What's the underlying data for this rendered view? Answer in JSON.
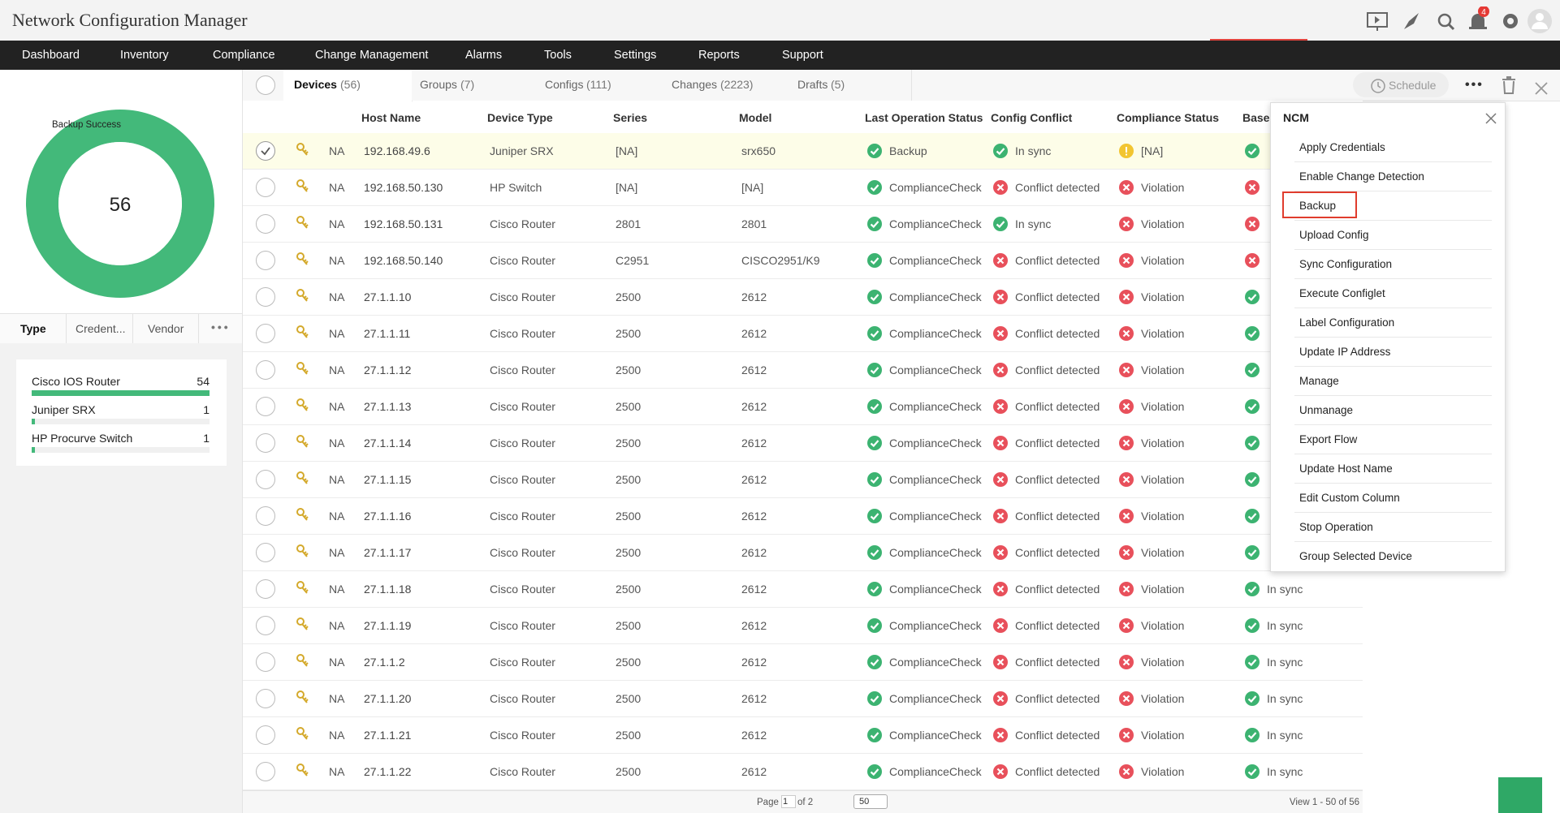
{
  "header": {
    "title": "Network Configuration Manager",
    "notification_count": "4"
  },
  "nav": [
    "Dashboard",
    "Inventory",
    "Compliance",
    "Change Management",
    "Alarms",
    "Tools",
    "Settings",
    "Reports",
    "Support"
  ],
  "summary": {
    "label": "Backup Success",
    "total": 56
  },
  "filter_tabs": [
    "Type",
    "Credent...",
    "Vendor"
  ],
  "device_types": [
    {
      "name": "Cisco IOS Router",
      "count": 54
    },
    {
      "name": "Juniper SRX",
      "count": 1
    },
    {
      "name": "HP Procurve Switch",
      "count": 1
    }
  ],
  "tabs": [
    {
      "label": "Devices",
      "count": "(56)"
    },
    {
      "label": "Groups",
      "count": "(7)"
    },
    {
      "label": "Configs",
      "count": "(111)"
    },
    {
      "label": "Changes",
      "count": "(2223)"
    },
    {
      "label": "Drafts",
      "count": "(5)"
    }
  ],
  "toolbar": {
    "schedule": "Schedule"
  },
  "columns": [
    "Host Name",
    "Device Type",
    "Series",
    "Model",
    "Last Operation Status",
    "Config Conflict",
    "Compliance Status",
    "Basel"
  ],
  "rows": [
    {
      "type": "NA",
      "host": "192.168.49.6",
      "device_type": "Juniper SRX",
      "series": "[NA]",
      "model": "srx650",
      "last_op": "Backup",
      "conflict": "In sync",
      "compliance": "[NA]"
    },
    {
      "type": "NA",
      "host": "192.168.50.130",
      "device_type": "HP Switch",
      "series": "[NA]",
      "model": "[NA]",
      "last_op": "ComplianceCheck",
      "conflict": "Conflict detected",
      "compliance": "Violation"
    },
    {
      "type": "NA",
      "host": "192.168.50.131",
      "device_type": "Cisco Router",
      "series": "2801",
      "model": "2801",
      "last_op": "ComplianceCheck",
      "conflict": "In sync",
      "compliance": "Violation"
    },
    {
      "type": "NA",
      "host": "192.168.50.140",
      "device_type": "Cisco Router",
      "series": "C2951",
      "model": "CISCO2951/K9",
      "last_op": "ComplianceCheck",
      "conflict": "Conflict detected",
      "compliance": "Violation"
    },
    {
      "type": "NA",
      "host": "27.1.1.10",
      "device_type": "Cisco Router",
      "series": "2500",
      "model": "2612",
      "last_op": "ComplianceCheck",
      "conflict": "Conflict detected",
      "compliance": "Violation"
    },
    {
      "type": "NA",
      "host": "27.1.1.11",
      "device_type": "Cisco Router",
      "series": "2500",
      "model": "2612",
      "last_op": "ComplianceCheck",
      "conflict": "Conflict detected",
      "compliance": "Violation"
    },
    {
      "type": "NA",
      "host": "27.1.1.12",
      "device_type": "Cisco Router",
      "series": "2500",
      "model": "2612",
      "last_op": "ComplianceCheck",
      "conflict": "Conflict detected",
      "compliance": "Violation"
    },
    {
      "type": "NA",
      "host": "27.1.1.13",
      "device_type": "Cisco Router",
      "series": "2500",
      "model": "2612",
      "last_op": "ComplianceCheck",
      "conflict": "Conflict detected",
      "compliance": "Violation"
    },
    {
      "type": "NA",
      "host": "27.1.1.14",
      "device_type": "Cisco Router",
      "series": "2500",
      "model": "2612",
      "last_op": "ComplianceCheck",
      "conflict": "Conflict detected",
      "compliance": "Violation"
    },
    {
      "type": "NA",
      "host": "27.1.1.15",
      "device_type": "Cisco Router",
      "series": "2500",
      "model": "2612",
      "last_op": "ComplianceCheck",
      "conflict": "Conflict detected",
      "compliance": "Violation"
    },
    {
      "type": "NA",
      "host": "27.1.1.16",
      "device_type": "Cisco Router",
      "series": "2500",
      "model": "2612",
      "last_op": "ComplianceCheck",
      "conflict": "Conflict detected",
      "compliance": "Violation"
    },
    {
      "type": "NA",
      "host": "27.1.1.17",
      "device_type": "Cisco Router",
      "series": "2500",
      "model": "2612",
      "last_op": "ComplianceCheck",
      "conflict": "Conflict detected",
      "compliance": "Violation"
    },
    {
      "type": "NA",
      "host": "27.1.1.18",
      "device_type": "Cisco Router",
      "series": "2500",
      "model": "2612",
      "last_op": "ComplianceCheck",
      "conflict": "Conflict detected",
      "compliance": "Violation",
      "baseline": "In sync"
    },
    {
      "type": "NA",
      "host": "27.1.1.19",
      "device_type": "Cisco Router",
      "series": "2500",
      "model": "2612",
      "last_op": "ComplianceCheck",
      "conflict": "Conflict detected",
      "compliance": "Violation",
      "baseline": "In sync"
    },
    {
      "type": "NA",
      "host": "27.1.1.2",
      "device_type": "Cisco Router",
      "series": "2500",
      "model": "2612",
      "last_op": "ComplianceCheck",
      "conflict": "Conflict detected",
      "compliance": "Violation",
      "baseline": "In sync"
    },
    {
      "type": "NA",
      "host": "27.1.1.20",
      "device_type": "Cisco Router",
      "series": "2500",
      "model": "2612",
      "last_op": "ComplianceCheck",
      "conflict": "Conflict detected",
      "compliance": "Violation",
      "baseline": "In sync"
    },
    {
      "type": "NA",
      "host": "27.1.1.21",
      "device_type": "Cisco Router",
      "series": "2500",
      "model": "2612",
      "last_op": "ComplianceCheck",
      "conflict": "Conflict detected",
      "compliance": "Violation",
      "baseline": "In sync"
    },
    {
      "type": "NA",
      "host": "27.1.1.22",
      "device_type": "Cisco Router",
      "series": "2500",
      "model": "2612",
      "last_op": "ComplianceCheck",
      "conflict": "Conflict detected",
      "compliance": "Violation",
      "baseline": "In sync"
    }
  ],
  "menu": {
    "title": "NCM",
    "items": [
      "Apply Credentials",
      "Enable Change Detection",
      "Backup",
      "Upload Config",
      "Sync Configuration",
      "Execute Configlet",
      "Label Configuration",
      "Update IP Address",
      "Manage",
      "Unmanage",
      "Export Flow",
      "Update Host Name",
      "Edit Custom Column",
      "Stop Operation",
      "Group Selected Device"
    ]
  },
  "pager": {
    "page_label": "Page",
    "page": "1",
    "of": "of 2",
    "per_page": "50",
    "view": "View 1 - 50 of 56"
  }
}
